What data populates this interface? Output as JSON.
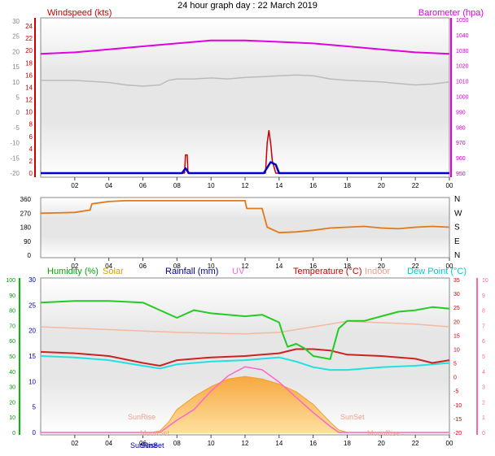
{
  "title": "24 hour graph day : 22 March 2019",
  "x_ticks": [
    "02",
    "04",
    "06",
    "08",
    "10",
    "12",
    "14",
    "16",
    "18",
    "20",
    "22",
    "00"
  ],
  "colors": {
    "wind": "#cc0000",
    "gust": "#0000cc",
    "baro": "#e000e0",
    "grey": "#bbbbbb",
    "dir": "#e07a1a",
    "hum": "#22cc22",
    "temp": "#cc2222",
    "indoor": "#f5b8a0",
    "dew": "#22e0e0",
    "uv": "#ff66cc",
    "solar": "#f7c060",
    "rain": "#000099",
    "green_axis": "#00bb00",
    "pink_axis": "#ff66aa"
  },
  "labels": {
    "windspeed": "Windspeed (kts)",
    "barometer": "Barometer (hpa)",
    "humidity": "Humidity (%)",
    "solar": "Solar",
    "rainfall": "Rainfall (mm)",
    "uv": "UV",
    "temperature": "Temperature (°C)",
    "indoor": "Indoor",
    "dewpoint": "Dew Point (°C)",
    "sunrise": "SunRise",
    "sunset": "SunSet",
    "moonrise": "MoonRise",
    "moonset": "MoonSet",
    "sunrise_axis": "SunRise",
    "sunset_axis": "SunSet"
  },
  "chart_data": [
    {
      "type": "line",
      "panel": "wind-barometer",
      "x_range": [
        0,
        24
      ],
      "axes": {
        "left_outer_ticks": [
          "30",
          "25",
          "20",
          "15",
          "10",
          "5",
          "0",
          "-5",
          "-10",
          "-15",
          "-20"
        ],
        "left_kts_ticks": [
          "24",
          "22",
          "20",
          "18",
          "16",
          "14",
          "12",
          "10",
          "8",
          "6",
          "4",
          "2",
          "0"
        ],
        "right_baro_ticks": [
          "1050",
          "1040",
          "1030",
          "1020",
          "1010",
          "1000",
          "990",
          "980",
          "970",
          "960",
          "950"
        ]
      },
      "ylim_kts": [
        0,
        25
      ],
      "ylim_baro": [
        947,
        1050
      ],
      "series": [
        {
          "name": "Barometer (hpa)",
          "points": [
            [
              0,
              1027
            ],
            [
              2,
              1028
            ],
            [
              4,
              1030
            ],
            [
              6,
              1032
            ],
            [
              8,
              1034
            ],
            [
              10,
              1036
            ],
            [
              12,
              1036
            ],
            [
              13,
              1035.5
            ],
            [
              14,
              1035
            ],
            [
              16,
              1034
            ],
            [
              18,
              1032
            ],
            [
              20,
              1030
            ],
            [
              22,
              1028
            ],
            [
              24,
              1027
            ]
          ]
        },
        {
          "points": [
            [
              0,
              10.5
            ],
            [
              2,
              10.5
            ],
            [
              4,
              9.8
            ],
            [
              5,
              9
            ],
            [
              6,
              8.6
            ],
            [
              7,
              9
            ],
            [
              7.5,
              10.5
            ],
            [
              8,
              11
            ],
            [
              9,
              11
            ],
            [
              10,
              11.3
            ],
            [
              11,
              11
            ],
            [
              12,
              11.5
            ],
            [
              13,
              11.7
            ],
            [
              14,
              12
            ],
            [
              15,
              12.3
            ],
            [
              16,
              12
            ],
            [
              17,
              11
            ],
            [
              18,
              10.5
            ],
            [
              19,
              10.3
            ],
            [
              20,
              10
            ],
            [
              21,
              9.5
            ],
            [
              22,
              9
            ],
            [
              23,
              9.3
            ],
            [
              24,
              10
            ]
          ]
        },
        {
          "name": "Windspeed",
          "points": [
            [
              0,
              0
            ],
            [
              8.45,
              0
            ],
            [
              8.5,
              3
            ],
            [
              8.6,
              3
            ],
            [
              8.65,
              0
            ],
            [
              13.2,
              0
            ],
            [
              13.3,
              5
            ],
            [
              13.4,
              7
            ],
            [
              13.5,
              5
            ],
            [
              13.6,
              2
            ],
            [
              13.8,
              0
            ],
            [
              24,
              0
            ]
          ]
        },
        {
          "name": "Gust",
          "points": [
            [
              0,
              0
            ],
            [
              8.3,
              0
            ],
            [
              8.5,
              0.8
            ],
            [
              8.7,
              0
            ],
            [
              13.1,
              0
            ],
            [
              13.5,
              1.8
            ],
            [
              13.8,
              1.4
            ],
            [
              14,
              0
            ],
            [
              24,
              0
            ]
          ]
        }
      ]
    },
    {
      "type": "line",
      "panel": "wind-direction",
      "x_range": [
        0,
        24
      ],
      "axes": {
        "left_ticks": [
          "360",
          "270",
          "180",
          "90",
          "0"
        ],
        "right_ticks": [
          "N",
          "W",
          "S",
          "E",
          "N"
        ]
      },
      "ylim": [
        0,
        360
      ],
      "series": [
        {
          "name": "Direction",
          "points": [
            [
              0,
              270
            ],
            [
              1,
              272
            ],
            [
              2,
              275
            ],
            [
              2.9,
              290
            ],
            [
              3,
              330
            ],
            [
              4,
              345
            ],
            [
              5,
              350
            ],
            [
              12,
              350
            ],
            [
              12.1,
              300
            ],
            [
              13,
              300
            ],
            [
              13.3,
              180
            ],
            [
              14,
              145
            ],
            [
              15,
              150
            ],
            [
              16,
              160
            ],
            [
              17,
              175
            ],
            [
              18,
              180
            ],
            [
              19,
              185
            ],
            [
              20,
              175
            ],
            [
              21,
              170
            ],
            [
              22,
              180
            ],
            [
              23,
              185
            ],
            [
              24,
              180
            ]
          ]
        }
      ]
    },
    {
      "type": "line",
      "panel": "temperature-humidity",
      "x_range": [
        0,
        24
      ],
      "axes": {
        "left_green_ticks": [
          "100",
          "90",
          "80",
          "70",
          "60",
          "50",
          "40",
          "30",
          "20",
          "10",
          "0"
        ],
        "left_solar_ticks": [
          "30",
          "25",
          "20",
          "15",
          "10",
          "5",
          "0"
        ],
        "right_temp_ticks": [
          "35",
          "30",
          "25",
          "20",
          "15",
          "10",
          "5",
          "0",
          "-5",
          "-10",
          "-15",
          "-20"
        ],
        "right_uv_ticks": [
          "10",
          "9",
          "8",
          "7",
          "6",
          "5",
          "4",
          "3",
          "2",
          "1",
          "0"
        ]
      },
      "ylim_temp": [
        -20,
        35
      ],
      "ylim_hum": [
        0,
        100
      ],
      "series": [
        {
          "name": "Humidity (%)",
          "points": [
            [
              0,
              85
            ],
            [
              2,
              86
            ],
            [
              4,
              86
            ],
            [
              6,
              85
            ],
            [
              7,
              80
            ],
            [
              8,
              75
            ],
            [
              9,
              80
            ],
            [
              10,
              78
            ],
            [
              12,
              76
            ],
            [
              13,
              77
            ],
            [
              14,
              72
            ],
            [
              14.2,
              65
            ],
            [
              14.5,
              56
            ],
            [
              15,
              58
            ],
            [
              15.5,
              55
            ],
            [
              16,
              50
            ],
            [
              17,
              48
            ],
            [
              17.5,
              68
            ],
            [
              18,
              73
            ],
            [
              19,
              73
            ],
            [
              20,
              76
            ],
            [
              21,
              79
            ],
            [
              22,
              80
            ],
            [
              23,
              82
            ],
            [
              24,
              81
            ]
          ]
        },
        {
          "name": "Temperature (°C)",
          "points": [
            [
              0,
              9
            ],
            [
              2,
              8.5
            ],
            [
              4,
              7.5
            ],
            [
              6,
              5
            ],
            [
              7,
              4
            ],
            [
              8,
              6
            ],
            [
              10,
              7
            ],
            [
              12,
              7.5
            ],
            [
              13,
              8
            ],
            [
              14,
              8.5
            ],
            [
              15,
              10
            ],
            [
              16,
              10
            ],
            [
              17,
              9.5
            ],
            [
              18,
              8
            ],
            [
              20,
              7.5
            ],
            [
              22,
              6.5
            ],
            [
              23,
              5
            ],
            [
              24,
              6
            ]
          ]
        },
        {
          "name": "Indoor",
          "points": [
            [
              0,
              18
            ],
            [
              4,
              17
            ],
            [
              8,
              16
            ],
            [
              12,
              15.5
            ],
            [
              14,
              16
            ],
            [
              16,
              18
            ],
            [
              18,
              20
            ],
            [
              20,
              19.5
            ],
            [
              22,
              19
            ],
            [
              24,
              18
            ]
          ]
        },
        {
          "name": "Dew Point (°C)",
          "points": [
            [
              0,
              7.5
            ],
            [
              2,
              7
            ],
            [
              4,
              6
            ],
            [
              6,
              4
            ],
            [
              7,
              3
            ],
            [
              8,
              4.5
            ],
            [
              10,
              5.5
            ],
            [
              12,
              6
            ],
            [
              13,
              6.5
            ],
            [
              14,
              7
            ],
            [
              15,
              5.5
            ],
            [
              16,
              3.5
            ],
            [
              17,
              2.5
            ],
            [
              18,
              2.5
            ],
            [
              20,
              3.5
            ],
            [
              22,
              4
            ],
            [
              23,
              4.5
            ],
            [
              24,
              5
            ]
          ]
        },
        {
          "name": "Solar",
          "points": [
            [
              0,
              0
            ],
            [
              6.5,
              0
            ],
            [
              7,
              0.3
            ],
            [
              7.5,
              2
            ],
            [
              8,
              4.5
            ],
            [
              9,
              7
            ],
            [
              10,
              9
            ],
            [
              11,
              10.5
            ],
            [
              12,
              11
            ],
            [
              13,
              10.5
            ],
            [
              14,
              9.5
            ],
            [
              15,
              8
            ],
            [
              16,
              5.5
            ],
            [
              17,
              2
            ],
            [
              17.5,
              0.5
            ],
            [
              18,
              0
            ],
            [
              24,
              0
            ]
          ]
        },
        {
          "name": "UV",
          "points": [
            [
              0,
              0
            ],
            [
              7,
              0
            ],
            [
              8,
              0.8
            ],
            [
              9,
              1.5
            ],
            [
              10,
              2.7
            ],
            [
              11,
              3.7
            ],
            [
              12,
              4.3
            ],
            [
              13,
              4.1
            ],
            [
              14,
              3.3
            ],
            [
              15,
              2.3
            ],
            [
              16,
              1.3
            ],
            [
              17,
              0.4
            ],
            [
              17.5,
              0
            ],
            [
              24,
              0
            ]
          ]
        }
      ]
    }
  ]
}
